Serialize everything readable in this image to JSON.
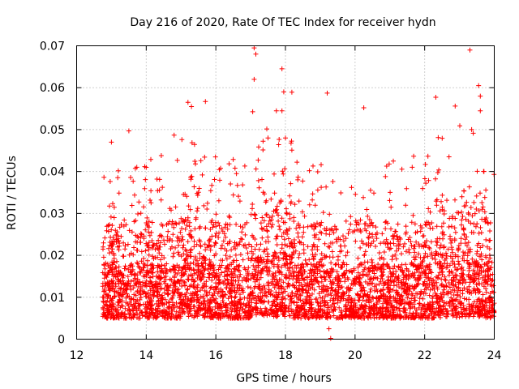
{
  "chart_data": {
    "type": "scatter",
    "title": "Day 216 of 2020, Rate Of TEC Index for receiver hydn",
    "xlabel": "GPS time / hours",
    "ylabel": "ROTI / TECUs",
    "xlim": [
      12,
      24
    ],
    "ylim": [
      0,
      0.07
    ],
    "x_ticks": [
      "12",
      "14",
      "16",
      "18",
      "20",
      "22",
      "24"
    ],
    "y_ticks": [
      "0",
      "0.01",
      "0.02",
      "0.03",
      "0.04",
      "0.05",
      "0.06",
      "0.07"
    ],
    "grid": true,
    "marker": "plus",
    "series": [
      {
        "name": "ROTI",
        "color": "#ff0000",
        "x_range": [
          12.75,
          24.0
        ],
        "base_level": 0.011,
        "note": "approximately 9000 points; dense band 0.005-0.02 TECU with spikes",
        "sample_points": [
          [
            13.0,
            0.047
          ],
          [
            13.5,
            0.0497
          ],
          [
            14.0,
            0.041
          ],
          [
            14.8,
            0.0487
          ],
          [
            15.2,
            0.0565
          ],
          [
            15.3,
            0.0555
          ],
          [
            15.7,
            0.0567
          ],
          [
            17.1,
            0.0695
          ],
          [
            17.15,
            0.068
          ],
          [
            17.1,
            0.062
          ],
          [
            17.9,
            0.0645
          ],
          [
            17.95,
            0.059
          ],
          [
            17.9,
            0.0545
          ],
          [
            19.2,
            0.0587
          ],
          [
            20.25,
            0.0552
          ],
          [
            21.1,
            0.0425
          ],
          [
            22.7,
            0.0435
          ],
          [
            23.3,
            0.069
          ],
          [
            23.55,
            0.0605
          ],
          [
            23.6,
            0.058
          ],
          [
            23.35,
            0.05
          ],
          [
            23.6,
            0.0545
          ],
          [
            18.0,
            0.048
          ],
          [
            17.5,
            0.048
          ],
          [
            19.3,
            0.0002
          ],
          [
            19.25,
            0.0025
          ]
        ]
      }
    ]
  }
}
